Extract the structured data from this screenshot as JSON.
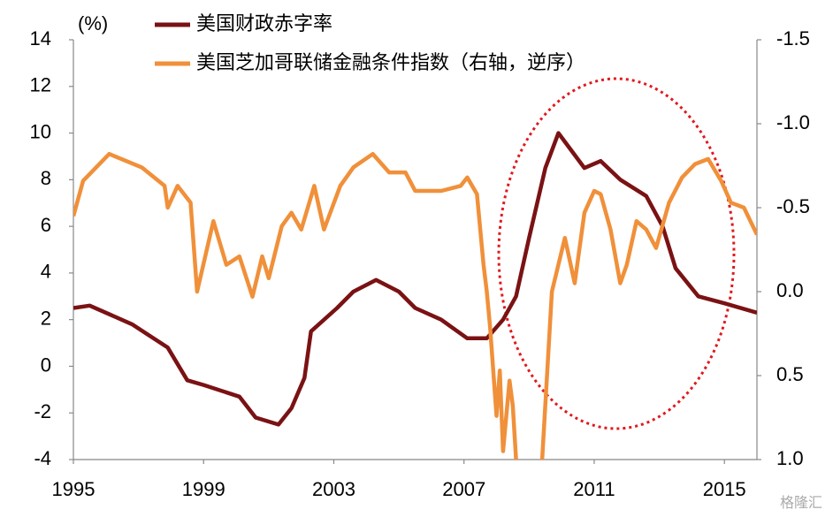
{
  "chart_data": {
    "type": "line",
    "y_label": "(%)",
    "watermark": "格隆汇",
    "xlim": [
      1995,
      2016
    ],
    "xticks": [
      1995,
      1999,
      2003,
      2007,
      2011,
      2015
    ],
    "ylim": [
      -4,
      14
    ],
    "yticks": [
      -4,
      -2,
      0,
      2,
      4,
      6,
      8,
      10,
      12,
      14
    ],
    "y2lim": [
      1.0,
      -1.5
    ],
    "y2ticks": [
      {
        "value": 1.0,
        "label": "1.0"
      },
      0.5,
      {
        "value": 0,
        "label": "0.0"
      },
      -0.5,
      {
        "value": -1.0,
        "label": "-1.0"
      },
      -1.5
    ],
    "series": [
      {
        "name": "美国财政赤字率",
        "color": "#7a1214",
        "axis": "y",
        "x": [
          1995,
          1995.5,
          1996.8,
          1997.9,
          1998.5,
          1999,
          2000.1,
          2000.6,
          2001.3,
          2001.7,
          2002.1,
          2002.3,
          2003.1,
          2003.6,
          2004.3,
          2005,
          2005.5,
          2006.3,
          2007.1,
          2007.7,
          2008.2,
          2008.6,
          2009,
          2009.5,
          2009.9,
          2010.7,
          2011.2,
          2011.8,
          2012.6,
          2013.1,
          2013.5,
          2014.2,
          2015,
          2016
        ],
        "values": [
          2.5,
          2.6,
          1.8,
          0.8,
          -0.6,
          -0.8,
          -1.3,
          -2.2,
          -2.5,
          -1.8,
          -0.5,
          1.5,
          2.5,
          3.2,
          3.7,
          3.2,
          2.5,
          2.0,
          1.2,
          1.2,
          2.0,
          3.0,
          5.5,
          8.5,
          10,
          8.5,
          8.8,
          8.0,
          7.3,
          6.0,
          4.2,
          3.0,
          2.7,
          2.3
        ]
      },
      {
        "name": "美国芝加哥联储金融条件指数（右轴，逆序）",
        "color": "#f0903a",
        "axis": "y2",
        "x": [
          1995,
          1995.3,
          1996.1,
          1997.1,
          1997.8,
          1997.9,
          1998.2,
          1998.6,
          1998.8,
          1999.3,
          1999.7,
          2000.1,
          2000.5,
          2000.8,
          2001.0,
          2001.4,
          2001.7,
          2002.0,
          2002.4,
          2002.7,
          2003.2,
          2003.6,
          2004.2,
          2004.7,
          2005.2,
          2005.5,
          2006.3,
          2006.9,
          2007.1,
          2007.4,
          2007.6,
          2007.7,
          2007.8,
          2008.0,
          2008.1,
          2008.2,
          2008.4,
          2008.5,
          2008.6,
          2009.0,
          2009.4,
          2009.7,
          2010.1,
          2010.4,
          2010.7,
          2011.0,
          2011.2,
          2011.5,
          2011.8,
          2012.0,
          2012.3,
          2012.6,
          2012.9,
          2013.3,
          2013.7,
          2014.1,
          2014.5,
          2014.9,
          2015.2,
          2015.6,
          2015.8,
          2016.0
        ],
        "values": [
          -0.45,
          -0.66,
          -0.82,
          -0.74,
          -0.63,
          -0.5,
          -0.63,
          -0.53,
          0,
          -0.42,
          -0.16,
          -0.21,
          0.03,
          -0.21,
          -0.08,
          -0.39,
          -0.47,
          -0.37,
          -0.63,
          -0.37,
          -0.63,
          -0.74,
          -0.82,
          -0.71,
          -0.71,
          -0.6,
          -0.6,
          -0.63,
          -0.68,
          -0.58,
          -0.16,
          0,
          0.21,
          0.74,
          0.47,
          0.95,
          0.53,
          0.68,
          1.0,
          1.4,
          1.0,
          0,
          -0.32,
          -0.05,
          -0.47,
          -0.6,
          -0.58,
          -0.37,
          -0.05,
          -0.16,
          -0.42,
          -0.37,
          -0.26,
          -0.53,
          -0.68,
          -0.76,
          -0.79,
          -0.66,
          -0.53,
          -0.5,
          -0.42,
          -0.34
        ]
      }
    ]
  }
}
